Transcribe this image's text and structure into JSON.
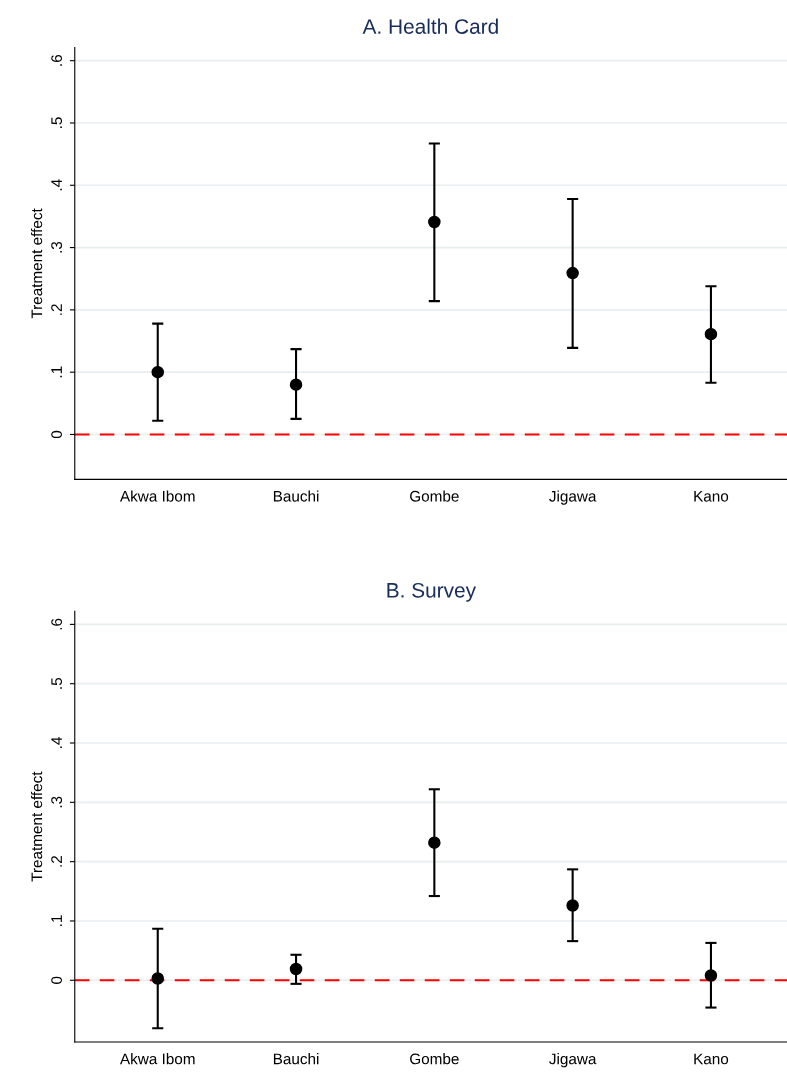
{
  "chart_data": [
    {
      "type": "scatter",
      "title": "A. Health Card",
      "ylabel": "Treatment effect",
      "categories": [
        "Akwa Ibom",
        "Bauchi",
        "Gombe",
        "Jigawa",
        "Kano"
      ],
      "series": [
        {
          "color": "#000000",
          "values": [
            0.1,
            0.08,
            0.341,
            0.259,
            0.161
          ],
          "errors": [
            [
              0.022,
              0.178
            ],
            [
              0.025,
              0.137
            ],
            [
              0.214,
              0.467
            ],
            [
              0.139,
              0.378
            ],
            [
              0.083,
              0.238
            ]
          ]
        }
      ],
      "ylim": [
        -0.072,
        0.621
      ],
      "yticks": [
        0,
        {
          "value": 0.1,
          "label": ".1"
        },
        {
          "value": 0.2,
          "label": ".2"
        },
        {
          "value": 0.3,
          "label": ".3"
        },
        {
          "value": 0.4,
          "label": ".4"
        },
        {
          "value": 0.5,
          "label": ".5"
        },
        {
          "value": 0.6,
          "label": ".6"
        }
      ],
      "grid": "y",
      "marker": "circle",
      "ref_lines": [
        {
          "axis": "y",
          "value": 0,
          "color": "#ff0000",
          "line_style": "dashed"
        }
      ]
    },
    {
      "type": "scatter",
      "title": "B. Survey",
      "ylabel": "Treatment effect",
      "categories": [
        "Akwa Ibom",
        "Bauchi",
        "Gombe",
        "Jigawa",
        "Kano"
      ],
      "series": [
        {
          "color": "#000000",
          "values": [
            0.003,
            0.019,
            0.232,
            0.126,
            0.008
          ],
          "errors": [
            [
              -0.081,
              0.087
            ],
            [
              -0.006,
              0.043
            ],
            [
              0.142,
              0.322
            ],
            [
              0.066,
              0.187
            ],
            [
              -0.046,
              0.063
            ]
          ]
        }
      ],
      "ylim": [
        -0.104,
        0.622
      ],
      "yticks": [
        0,
        {
          "value": 0.1,
          "label": ".1"
        },
        {
          "value": 0.2,
          "label": ".2"
        },
        {
          "value": 0.3,
          "label": ".3"
        },
        {
          "value": 0.4,
          "label": ".4"
        },
        {
          "value": 0.5,
          "label": ".5"
        },
        {
          "value": 0.6,
          "label": ".6"
        }
      ],
      "grid": "y",
      "marker": "circle",
      "ref_lines": [
        {
          "axis": "y",
          "value": 0,
          "color": "#ff0000",
          "line_style": "dashed"
        }
      ]
    }
  ]
}
